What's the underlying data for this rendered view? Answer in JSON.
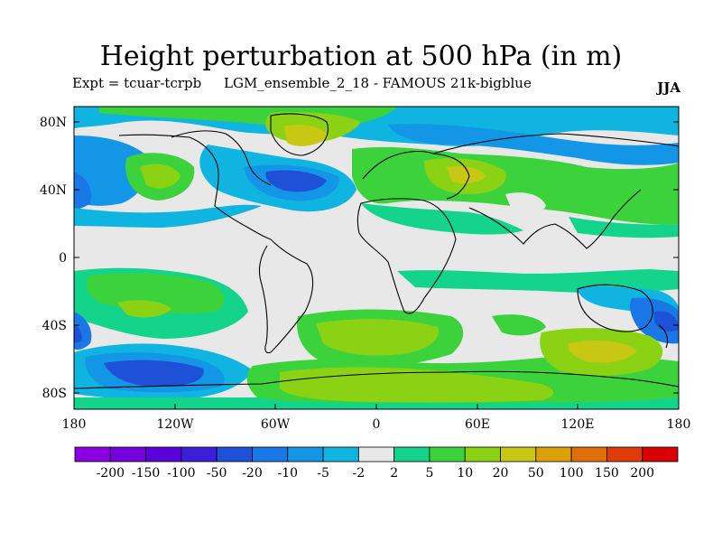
{
  "header": {
    "title": "Height perturbation at 500 hPa (in m)",
    "expt": "Expt = tcuar-tcrpb",
    "ensemble": "LGM_ensemble_2_18 - FAMOUS 21k-bigblue",
    "season": "JJA"
  },
  "map": {
    "lat_labels": [
      "80N",
      "40N",
      "0",
      "40S",
      "80S"
    ],
    "lon_labels": [
      "180",
      "120W",
      "60W",
      "0",
      "60E",
      "120E",
      "180"
    ]
  },
  "legend": {
    "levels": [
      "-200",
      "-150",
      "-100",
      "-50",
      "-20",
      "-10",
      "-5",
      "-2",
      "2",
      "5",
      "10",
      "20",
      "50",
      "100",
      "150",
      "200"
    ],
    "colors": [
      "#8a00e0",
      "#7400dc",
      "#5a00d8",
      "#3c1ed8",
      "#1e50d8",
      "#1a78e6",
      "#1496e6",
      "#10b4e0",
      "#e8e8e8",
      "#14d48c",
      "#3cd23c",
      "#8cd214",
      "#c8c814",
      "#dca00a",
      "#e06e0a",
      "#e03c0a",
      "#d80000"
    ]
  }
}
